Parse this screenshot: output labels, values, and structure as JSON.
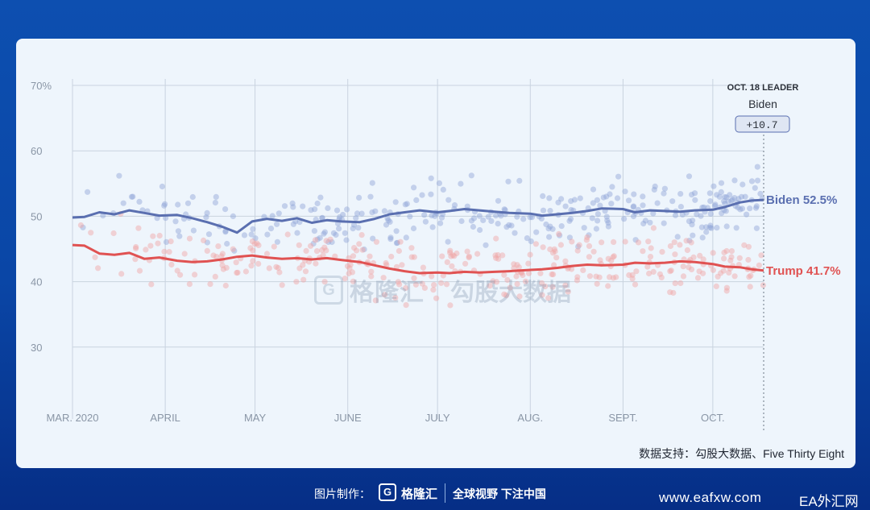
{
  "chart_data": {
    "type": "line",
    "x_ticks": [
      "MAR. 2020",
      "APRIL",
      "MAY",
      "JUNE",
      "JULY",
      "AUG.",
      "SEPT.",
      "OCT."
    ],
    "y_ticks": [
      "70%",
      "60",
      "50",
      "40",
      "30"
    ],
    "ylim": [
      20,
      70
    ],
    "grid": true,
    "x_domain": [
      "2020-03-01",
      "2020-10-18"
    ],
    "leader_box": {
      "date_label": "OCT. 18 LEADER",
      "leader": "Biden",
      "margin": "+10.7"
    },
    "series": [
      {
        "name": "Biden",
        "end_label": "Biden 52.5%",
        "color": "#5a6fb0",
        "dot_color": "#8fa3d8",
        "points": [
          [
            "2020-03-01",
            49.8
          ],
          [
            "2020-03-05",
            49.9
          ],
          [
            "2020-03-10",
            50.6
          ],
          [
            "2020-03-15",
            50.3
          ],
          [
            "2020-03-20",
            50.9
          ],
          [
            "2020-03-25",
            50.5
          ],
          [
            "2020-03-30",
            50.1
          ],
          [
            "2020-04-05",
            50.2
          ],
          [
            "2020-04-10",
            49.7
          ],
          [
            "2020-04-15",
            49.1
          ],
          [
            "2020-04-20",
            48.4
          ],
          [
            "2020-04-25",
            47.5
          ],
          [
            "2020-04-30",
            49.2
          ],
          [
            "2020-05-05",
            49.6
          ],
          [
            "2020-05-10",
            49.3
          ],
          [
            "2020-05-15",
            49.7
          ],
          [
            "2020-05-20",
            49.0
          ],
          [
            "2020-05-25",
            49.4
          ],
          [
            "2020-05-30",
            49.2
          ],
          [
            "2020-06-05",
            49.1
          ],
          [
            "2020-06-10",
            49.6
          ],
          [
            "2020-06-15",
            50.3
          ],
          [
            "2020-06-20",
            50.6
          ],
          [
            "2020-06-25",
            50.9
          ],
          [
            "2020-07-01",
            50.6
          ],
          [
            "2020-07-05",
            50.8
          ],
          [
            "2020-07-10",
            51.1
          ],
          [
            "2020-07-15",
            50.9
          ],
          [
            "2020-07-20",
            50.7
          ],
          [
            "2020-07-25",
            50.5
          ],
          [
            "2020-08-01",
            50.4
          ],
          [
            "2020-08-05",
            50.1
          ],
          [
            "2020-08-10",
            50.3
          ],
          [
            "2020-08-15",
            50.5
          ],
          [
            "2020-08-20",
            50.8
          ],
          [
            "2020-08-25",
            51.2
          ],
          [
            "2020-09-01",
            51.1
          ],
          [
            "2020-09-05",
            50.6
          ],
          [
            "2020-09-10",
            50.9
          ],
          [
            "2020-09-15",
            50.8
          ],
          [
            "2020-09-20",
            50.7
          ],
          [
            "2020-09-25",
            50.9
          ],
          [
            "2020-10-01",
            51.0
          ],
          [
            "2020-10-05",
            51.4
          ],
          [
            "2020-10-10",
            52.1
          ],
          [
            "2020-10-14",
            52.4
          ],
          [
            "2020-10-18",
            52.5
          ]
        ]
      },
      {
        "name": "Trump",
        "end_label": "Trump 41.7%",
        "color": "#e05252",
        "dot_color": "#f0a3a3",
        "points": [
          [
            "2020-03-01",
            45.6
          ],
          [
            "2020-03-05",
            45.5
          ],
          [
            "2020-03-10",
            44.3
          ],
          [
            "2020-03-15",
            44.1
          ],
          [
            "2020-03-20",
            44.4
          ],
          [
            "2020-03-25",
            43.5
          ],
          [
            "2020-03-30",
            43.7
          ],
          [
            "2020-04-05",
            43.2
          ],
          [
            "2020-04-10",
            43.0
          ],
          [
            "2020-04-15",
            43.1
          ],
          [
            "2020-04-20",
            43.4
          ],
          [
            "2020-04-25",
            43.8
          ],
          [
            "2020-04-30",
            44.0
          ],
          [
            "2020-05-05",
            43.7
          ],
          [
            "2020-05-10",
            43.5
          ],
          [
            "2020-05-15",
            43.6
          ],
          [
            "2020-05-20",
            43.4
          ],
          [
            "2020-05-25",
            43.6
          ],
          [
            "2020-05-30",
            43.3
          ],
          [
            "2020-06-05",
            43.0
          ],
          [
            "2020-06-10",
            42.5
          ],
          [
            "2020-06-15",
            42.0
          ],
          [
            "2020-06-20",
            41.6
          ],
          [
            "2020-06-25",
            41.3
          ],
          [
            "2020-07-01",
            41.4
          ],
          [
            "2020-07-05",
            41.3
          ],
          [
            "2020-07-10",
            41.5
          ],
          [
            "2020-07-15",
            41.4
          ],
          [
            "2020-07-20",
            41.5
          ],
          [
            "2020-07-25",
            41.6
          ],
          [
            "2020-08-01",
            41.8
          ],
          [
            "2020-08-05",
            41.9
          ],
          [
            "2020-08-10",
            42.1
          ],
          [
            "2020-08-15",
            42.4
          ],
          [
            "2020-08-20",
            42.6
          ],
          [
            "2020-08-25",
            42.5
          ],
          [
            "2020-09-01",
            42.6
          ],
          [
            "2020-09-05",
            42.9
          ],
          [
            "2020-09-10",
            42.8
          ],
          [
            "2020-09-15",
            42.9
          ],
          [
            "2020-09-20",
            43.1
          ],
          [
            "2020-09-25",
            43.0
          ],
          [
            "2020-10-01",
            42.7
          ],
          [
            "2020-10-05",
            42.3
          ],
          [
            "2020-10-10",
            42.2
          ],
          [
            "2020-10-14",
            41.9
          ],
          [
            "2020-10-18",
            41.7
          ]
        ]
      }
    ]
  },
  "source": "数据支持：勾股大数据、Five Thirty Eight",
  "watermark": {
    "logo": "G",
    "name": "格隆汇",
    "name2": "勾股大数据"
  },
  "footer": {
    "made_by": "图片制作：",
    "logo": "G",
    "brand": "格隆汇",
    "slogan": "全球视野 下注中国",
    "site": "www.eafxw.com",
    "site2": "EA外汇网"
  }
}
